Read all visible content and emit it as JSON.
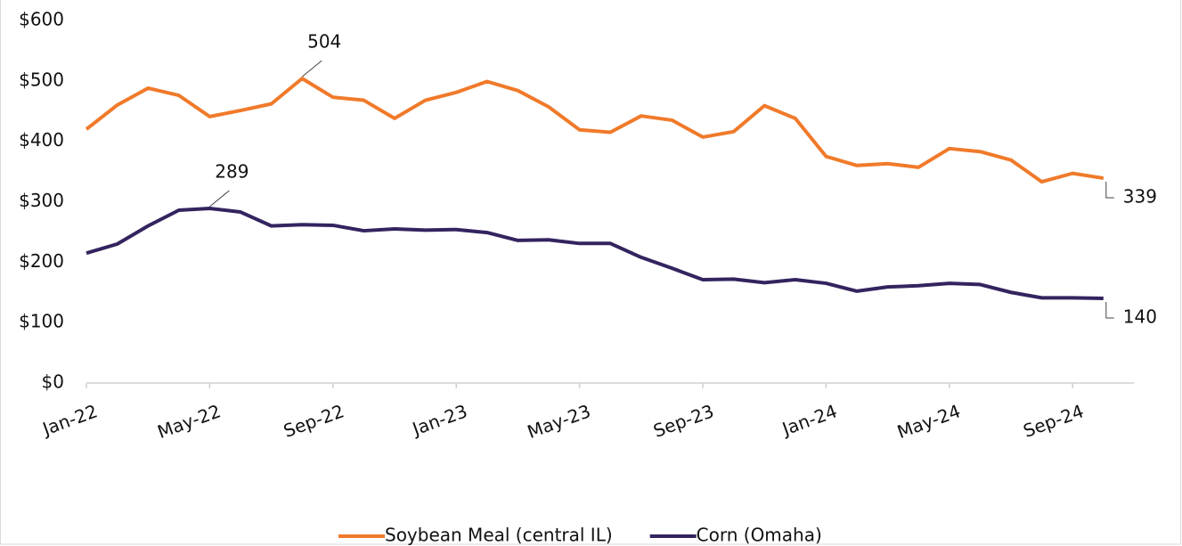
{
  "chart_data": {
    "type": "line",
    "categories": [
      "Jan-22",
      null,
      null,
      null,
      "May-22",
      null,
      null,
      null,
      "Sep-22",
      null,
      null,
      null,
      "Jan-23",
      null,
      null,
      null,
      "May-23",
      null,
      null,
      null,
      "Sep-23",
      null,
      null,
      null,
      "Jan-24",
      null,
      null,
      null,
      "May-24",
      null,
      null,
      null,
      "Sep-24",
      null
    ],
    "series": [
      {
        "name": "Soybean Meal (central IL)",
        "color": "#f07a2a",
        "labeled": [
          7,
          33
        ],
        "values": [
          420,
          460,
          488,
          476,
          441,
          451,
          462,
          504,
          473,
          468,
          438,
          468,
          481,
          499,
          484,
          457,
          419,
          415,
          442,
          435,
          407,
          416,
          459,
          438,
          375,
          360,
          363,
          357,
          388,
          383,
          369,
          333,
          347,
          339
        ]
      },
      {
        "name": "Corn (Omaha)",
        "color": "#33245f",
        "labeled": [
          4,
          33
        ],
        "values": [
          215,
          230,
          260,
          286,
          289,
          283,
          260,
          262,
          261,
          252,
          255,
          253,
          254,
          249,
          236,
          237,
          231,
          231,
          208,
          190,
          171,
          172,
          166,
          171,
          165,
          152,
          159,
          161,
          165,
          163,
          150,
          141,
          141,
          140
        ]
      }
    ],
    "ylim": [
      0,
      600
    ],
    "yticks": [
      {
        "value": 0,
        "label": "$0"
      },
      {
        "value": 100,
        "label": "$100"
      },
      {
        "value": 200,
        "label": "$200"
      },
      {
        "value": 300,
        "label": "$300"
      },
      {
        "value": 400,
        "label": "$400"
      },
      {
        "value": 500,
        "label": "$500"
      },
      {
        "value": 600,
        "label": "$600"
      }
    ],
    "legend": "bottom"
  }
}
